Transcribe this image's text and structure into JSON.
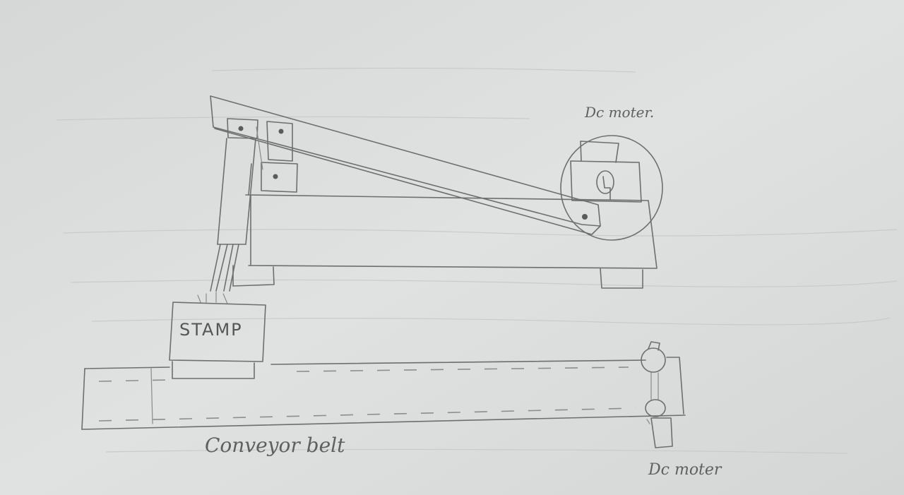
{
  "labels": {
    "dc_motor_top": "Dc moter.",
    "stamp": "STAMP",
    "conveyor": "Conveyor belt",
    "dc_motor_bottom": "Dc moter"
  },
  "colors": {
    "paper": "#dcdede",
    "pencil": "#6e6e70"
  }
}
